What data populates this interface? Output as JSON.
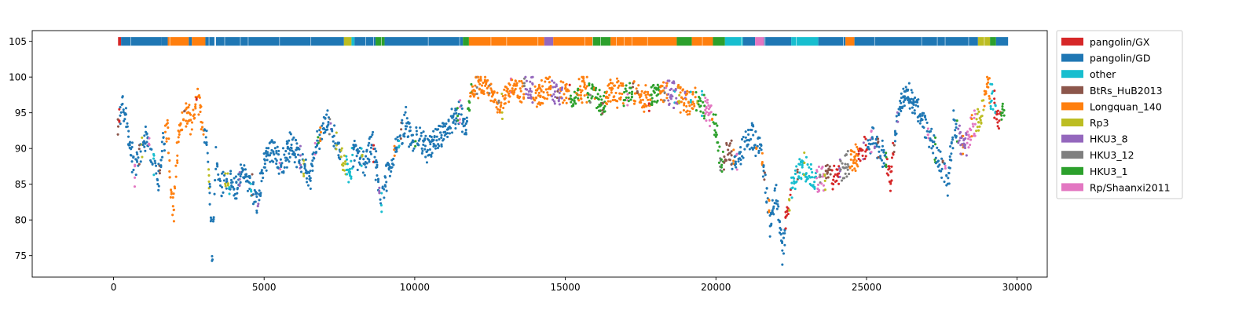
{
  "chart_data": {
    "type": "scatter",
    "title": "",
    "xlabel": "",
    "ylabel": "",
    "xlim": [
      -2700,
      31000
    ],
    "ylim": [
      72,
      106.5
    ],
    "xticks": [
      0,
      5000,
      10000,
      15000,
      20000,
      25000,
      30000
    ],
    "yticks": [
      75,
      80,
      85,
      90,
      95,
      100,
      105
    ],
    "grid": false,
    "legend_position": "outside-top-right",
    "series": [
      {
        "name": "pangolin/GX",
        "color": "#d62728"
      },
      {
        "name": "pangolin/GD",
        "color": "#1f77b4"
      },
      {
        "name": "other",
        "color": "#17becf"
      },
      {
        "name": "BtRs_HuB2013",
        "color": "#8c564b"
      },
      {
        "name": "Longquan_140",
        "color": "#ff7f0e"
      },
      {
        "name": "Rp3",
        "color": "#bcbd22"
      },
      {
        "name": "HKU3_8",
        "color": "#9467bd"
      },
      {
        "name": "HKU3_12",
        "color": "#7f7f7f"
      },
      {
        "name": "HKU3_1",
        "color": "#2ca02c"
      },
      {
        "name": "Rp/Shaanxi2011",
        "color": "#e377c2"
      }
    ],
    "profile": [
      [
        150,
        93,
        0
      ],
      [
        300,
        97,
        1
      ],
      [
        500,
        92,
        1
      ],
      [
        700,
        87,
        1
      ],
      [
        900,
        90,
        1
      ],
      [
        1100,
        92,
        1
      ],
      [
        1300,
        89,
        1
      ],
      [
        1500,
        86,
        1
      ],
      [
        1650,
        91,
        1
      ],
      [
        1800,
        93,
        4
      ],
      [
        1900,
        84,
        4
      ],
      [
        2000,
        82,
        4
      ],
      [
        2150,
        92,
        4
      ],
      [
        2400,
        95,
        4
      ],
      [
        2600,
        94,
        4
      ],
      [
        2800,
        97,
        4
      ],
      [
        2950,
        94,
        4
      ],
      [
        3100,
        91,
        1
      ],
      [
        3200,
        84,
        1
      ],
      [
        3280,
        76,
        1
      ],
      [
        3400,
        89,
        1
      ],
      [
        3550,
        85,
        1
      ],
      [
        3800,
        86,
        1
      ],
      [
        4000,
        84,
        1
      ],
      [
        4300,
        87,
        1
      ],
      [
        4600,
        85,
        1
      ],
      [
        4800,
        82,
        1
      ],
      [
        5000,
        89,
        1
      ],
      [
        5300,
        90,
        1
      ],
      [
        5600,
        88,
        1
      ],
      [
        5900,
        91,
        1
      ],
      [
        6200,
        89,
        1
      ],
      [
        6500,
        86,
        1
      ],
      [
        6800,
        92,
        1
      ],
      [
        7100,
        94,
        1
      ],
      [
        7400,
        91,
        1
      ],
      [
        7700,
        88,
        5
      ],
      [
        7850,
        87,
        2
      ],
      [
        8000,
        90,
        1
      ],
      [
        8300,
        88,
        1
      ],
      [
        8600,
        91,
        1
      ],
      [
        8900,
        83,
        1
      ],
      [
        9100,
        87,
        1
      ],
      [
        9400,
        90,
        1
      ],
      [
        9700,
        94,
        1
      ],
      [
        9900,
        91,
        1
      ],
      [
        10100,
        92,
        1
      ],
      [
        10400,
        90,
        1
      ],
      [
        10700,
        91,
        1
      ],
      [
        11000,
        93,
        1
      ],
      [
        11200,
        94,
        1
      ],
      [
        11500,
        95,
        1
      ],
      [
        11700,
        93,
        1
      ],
      [
        11850,
        97,
        8
      ],
      [
        12000,
        99,
        4
      ],
      [
        12300,
        99,
        4
      ],
      [
        12600,
        98,
        4
      ],
      [
        12900,
        96,
        4
      ],
      [
        13200,
        99,
        4
      ],
      [
        13500,
        98,
        4
      ],
      [
        13800,
        99,
        6
      ],
      [
        14100,
        97,
        4
      ],
      [
        14400,
        99,
        4
      ],
      [
        14700,
        98,
        6
      ],
      [
        15000,
        98,
        4
      ],
      [
        15300,
        97,
        8
      ],
      [
        15600,
        99,
        4
      ],
      [
        15900,
        98,
        8
      ],
      [
        16200,
        96,
        8
      ],
      [
        16500,
        98,
        4
      ],
      [
        16800,
        98,
        4
      ],
      [
        17100,
        98,
        8
      ],
      [
        17400,
        98,
        4
      ],
      [
        17700,
        97,
        4
      ],
      [
        18000,
        98,
        8
      ],
      [
        18300,
        98,
        4
      ],
      [
        18600,
        98,
        6
      ],
      [
        18900,
        97,
        4
      ],
      [
        19200,
        97,
        4
      ],
      [
        19500,
        97,
        8
      ],
      [
        19800,
        95,
        9
      ],
      [
        20000,
        93,
        8
      ],
      [
        20150,
        88,
        8
      ],
      [
        20400,
        90,
        3
      ],
      [
        20700,
        88,
        1
      ],
      [
        20950,
        91,
        1
      ],
      [
        21200,
        92,
        1
      ],
      [
        21500,
        90,
        1
      ],
      [
        21800,
        80,
        1
      ],
      [
        22000,
        84,
        1
      ],
      [
        22200,
        76,
        1
      ],
      [
        22400,
        82,
        0
      ],
      [
        22600,
        86,
        2
      ],
      [
        22900,
        88,
        2
      ],
      [
        23200,
        86,
        2
      ],
      [
        23500,
        86,
        9
      ],
      [
        23700,
        87,
        3
      ],
      [
        24000,
        86,
        0
      ],
      [
        24300,
        88,
        7
      ],
      [
        24600,
        89,
        4
      ],
      [
        24900,
        90,
        0
      ],
      [
        25200,
        92,
        1
      ],
      [
        25500,
        90,
        1
      ],
      [
        25800,
        86,
        0
      ],
      [
        26000,
        94,
        1
      ],
      [
        26300,
        98,
        1
      ],
      [
        26600,
        96,
        1
      ],
      [
        26900,
        94,
        1
      ],
      [
        27200,
        91,
        1
      ],
      [
        27500,
        88,
        1
      ],
      [
        27700,
        85,
        1
      ],
      [
        27900,
        94,
        1
      ],
      [
        28200,
        90,
        6
      ],
      [
        28500,
        93,
        9
      ],
      [
        28800,
        95,
        5
      ],
      [
        29000,
        99,
        4
      ],
      [
        29200,
        97,
        2
      ],
      [
        29400,
        94,
        0
      ],
      [
        29600,
        96,
        8
      ]
    ],
    "strip": [
      [
        150,
        250,
        0
      ],
      [
        250,
        1600,
        1
      ],
      [
        1600,
        1800,
        1
      ],
      [
        1800,
        2500,
        4
      ],
      [
        2500,
        2600,
        1
      ],
      [
        2600,
        3050,
        4
      ],
      [
        3050,
        3350,
        1
      ],
      [
        3400,
        7650,
        1
      ],
      [
        7650,
        7900,
        5
      ],
      [
        7900,
        8000,
        2
      ],
      [
        8000,
        8700,
        1
      ],
      [
        8700,
        9000,
        8
      ],
      [
        9000,
        11600,
        1
      ],
      [
        11600,
        11800,
        8
      ],
      [
        11800,
        14300,
        4
      ],
      [
        14300,
        14600,
        6
      ],
      [
        14600,
        15900,
        4
      ],
      [
        15900,
        16500,
        8
      ],
      [
        16500,
        18700,
        4
      ],
      [
        18700,
        19200,
        8
      ],
      [
        19200,
        19900,
        4
      ],
      [
        19900,
        20300,
        8
      ],
      [
        20300,
        20900,
        2
      ],
      [
        20900,
        21300,
        1
      ],
      [
        21300,
        21600,
        9
      ],
      [
        21600,
        22500,
        1
      ],
      [
        22500,
        23400,
        2
      ],
      [
        23400,
        24300,
        1
      ],
      [
        24300,
        24600,
        4
      ],
      [
        24600,
        28700,
        1
      ],
      [
        28700,
        29100,
        5
      ],
      [
        29100,
        29300,
        8
      ],
      [
        29300,
        29700,
        1
      ]
    ]
  }
}
